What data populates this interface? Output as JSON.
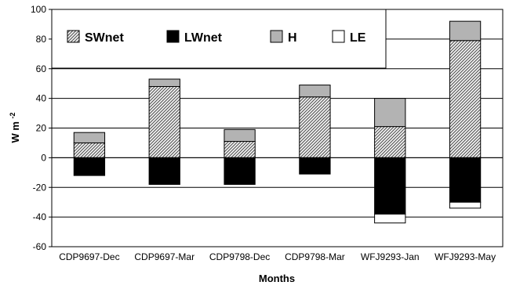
{
  "chart_data": {
    "type": "bar",
    "stacked": true,
    "title": "",
    "xlabel": "Months",
    "ylabel": "W m",
    "ylabel_superscript": "-2",
    "ylim": [
      -60,
      100
    ],
    "yticks": [
      -60,
      -40,
      -20,
      0,
      20,
      40,
      60,
      80,
      100
    ],
    "grid": true,
    "legend_position": "top-left",
    "categories": [
      "CDP9697-Dec",
      "CDP9697-Mar",
      "CDP9798-Dec",
      "CDP9798-Mar",
      "WFJ9293-Jan",
      "WFJ9293-May"
    ],
    "series": [
      {
        "name": "SWnet",
        "fill": "hatch",
        "color": "#8a8a8a",
        "values": [
          10,
          48,
          11,
          41,
          21,
          79
        ]
      },
      {
        "name": "LWnet",
        "fill": "solid",
        "color": "#000000",
        "values": [
          -12,
          -18,
          -18,
          -11,
          -38,
          -30
        ]
      },
      {
        "name": "H",
        "fill": "solid",
        "color": "#b3b3b3",
        "values": [
          7,
          5,
          8,
          8,
          19,
          13
        ]
      },
      {
        "name": "LE",
        "fill": "solid",
        "color": "#ffffff",
        "values": [
          0,
          0,
          0,
          0,
          -6,
          -4
        ]
      }
    ]
  }
}
